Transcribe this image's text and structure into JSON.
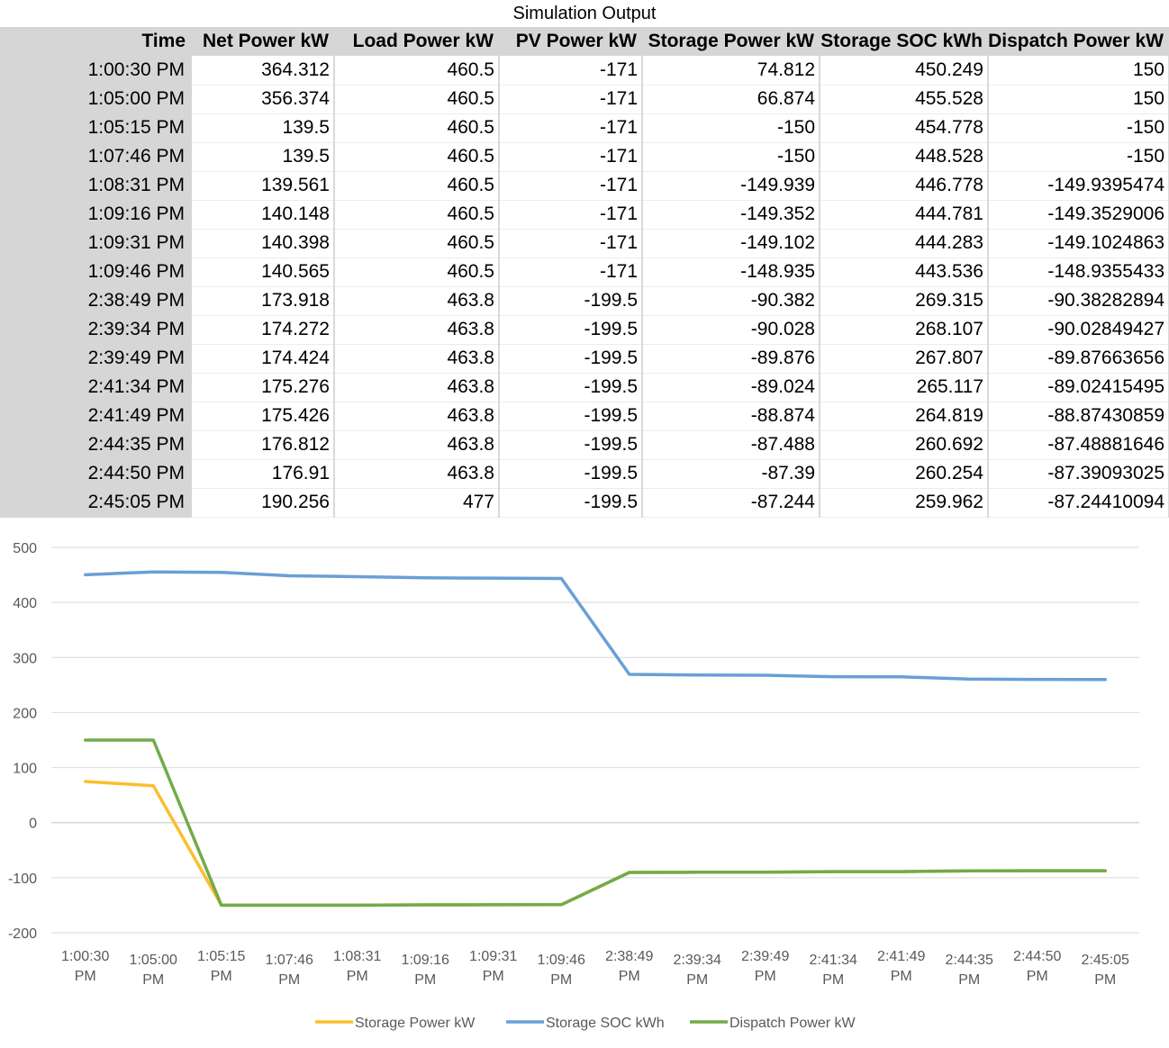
{
  "sheet": {
    "title": "Simulation Output",
    "columns": [
      "Time",
      "Net Power kW",
      "Load Power kW",
      "PV Power kW",
      "Storage Power kW",
      "Storage SOC kWh",
      "Dispatch Power kW"
    ],
    "rows": [
      [
        "1:00:30 PM",
        "364.312",
        "460.5",
        "-171",
        "74.812",
        "450.249",
        "150"
      ],
      [
        "1:05:00 PM",
        "356.374",
        "460.5",
        "-171",
        "66.874",
        "455.528",
        "150"
      ],
      [
        "1:05:15 PM",
        "139.5",
        "460.5",
        "-171",
        "-150",
        "454.778",
        "-150"
      ],
      [
        "1:07:46 PM",
        "139.5",
        "460.5",
        "-171",
        "-150",
        "448.528",
        "-150"
      ],
      [
        "1:08:31 PM",
        "139.561",
        "460.5",
        "-171",
        "-149.939",
        "446.778",
        "-149.9395474"
      ],
      [
        "1:09:16 PM",
        "140.148",
        "460.5",
        "-171",
        "-149.352",
        "444.781",
        "-149.3529006"
      ],
      [
        "1:09:31 PM",
        "140.398",
        "460.5",
        "-171",
        "-149.102",
        "444.283",
        "-149.1024863"
      ],
      [
        "1:09:46 PM",
        "140.565",
        "460.5",
        "-171",
        "-148.935",
        "443.536",
        "-148.9355433"
      ],
      [
        "2:38:49 PM",
        "173.918",
        "463.8",
        "-199.5",
        "-90.382",
        "269.315",
        "-90.38282894"
      ],
      [
        "2:39:34 PM",
        "174.272",
        "463.8",
        "-199.5",
        "-90.028",
        "268.107",
        "-90.02849427"
      ],
      [
        "2:39:49 PM",
        "174.424",
        "463.8",
        "-199.5",
        "-89.876",
        "267.807",
        "-89.87663656"
      ],
      [
        "2:41:34 PM",
        "175.276",
        "463.8",
        "-199.5",
        "-89.024",
        "265.117",
        "-89.02415495"
      ],
      [
        "2:41:49 PM",
        "175.426",
        "463.8",
        "-199.5",
        "-88.874",
        "264.819",
        "-88.87430859"
      ],
      [
        "2:44:35 PM",
        "176.812",
        "463.8",
        "-199.5",
        "-87.488",
        "260.692",
        "-87.48881646"
      ],
      [
        "2:44:50 PM",
        "176.91",
        "463.8",
        "-199.5",
        "-87.39",
        "260.254",
        "-87.39093025"
      ],
      [
        "2:45:05 PM",
        "190.256",
        "477",
        "-199.5",
        "-87.244",
        "259.962",
        "-87.24410094"
      ]
    ]
  },
  "chart_data": {
    "type": "line",
    "title": "",
    "xlabel": "",
    "ylabel": "",
    "categories": [
      "1:00:30 PM",
      "1:05:00 PM",
      "1:05:15 PM",
      "1:07:46 PM",
      "1:08:31 PM",
      "1:09:16 PM",
      "1:09:31 PM",
      "1:09:46 PM",
      "2:38:49 PM",
      "2:39:34 PM",
      "2:39:49 PM",
      "2:41:34 PM",
      "2:41:49 PM",
      "2:44:35 PM",
      "2:44:50 PM",
      "2:45:05 PM"
    ],
    "series": [
      {
        "name": "Storage Power kW",
        "color": "#fbbf2d",
        "values": [
          74.812,
          66.874,
          -150,
          -150,
          -149.939,
          -149.352,
          -149.102,
          -148.935,
          -90.382,
          -90.028,
          -89.876,
          -89.024,
          -88.874,
          -87.488,
          -87.39,
          -87.244
        ]
      },
      {
        "name": "Storage SOC kWh",
        "color": "#6a9fd6",
        "values": [
          450.249,
          455.528,
          454.778,
          448.528,
          446.778,
          444.781,
          444.283,
          443.536,
          269.315,
          268.107,
          267.807,
          265.117,
          264.819,
          260.692,
          260.254,
          259.962
        ]
      },
      {
        "name": "Dispatch Power kW",
        "color": "#72ab48",
        "values": [
          150,
          150,
          -150,
          -150,
          -149.9395474,
          -149.3529006,
          -149.1024863,
          -148.9355433,
          -90.38282894,
          -90.02849427,
          -89.87663656,
          -89.02415495,
          -88.87430859,
          -87.48881646,
          -87.39093025,
          -87.24410094
        ]
      }
    ],
    "ylim": [
      -200,
      500
    ],
    "yticks": [
      -200,
      -100,
      0,
      100,
      200,
      300,
      400,
      500
    ],
    "grid": true,
    "legend": "bottom"
  }
}
